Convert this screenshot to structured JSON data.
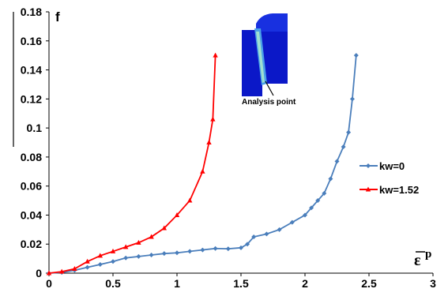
{
  "chart_data": {
    "type": "line",
    "ylabel": "f",
    "xlabel_symbol": "ε",
    "xlabel_sup": "p",
    "xlim": [
      0,
      3
    ],
    "ylim": [
      0,
      0.18
    ],
    "x_ticks": [
      "0",
      "0.5",
      "1",
      "1.5",
      "2",
      "2.5",
      "3"
    ],
    "y_ticks": [
      "0",
      "0.02",
      "0.04",
      "0.06",
      "0.08",
      "0.1",
      "0.12",
      "0.14",
      "0.16",
      "0.18"
    ],
    "legend_position": "right",
    "inset_annotation": "Analysis point",
    "series": [
      {
        "name": "kw=0",
        "color": "#4a7ebb",
        "marker": "diamond",
        "x": [
          0,
          0.1,
          0.2,
          0.3,
          0.4,
          0.5,
          0.6,
          0.7,
          0.8,
          0.9,
          1.0,
          1.1,
          1.2,
          1.3,
          1.4,
          1.5,
          1.55,
          1.6,
          1.7,
          1.8,
          1.9,
          2.0,
          2.05,
          2.1,
          2.15,
          2.2,
          2.25,
          2.3,
          2.34,
          2.37,
          2.4
        ],
        "y": [
          0,
          0.0005,
          0.002,
          0.004,
          0.006,
          0.008,
          0.0105,
          0.0115,
          0.0125,
          0.0135,
          0.014,
          0.015,
          0.016,
          0.017,
          0.0168,
          0.0175,
          0.02,
          0.025,
          0.027,
          0.03,
          0.035,
          0.04,
          0.045,
          0.05,
          0.055,
          0.065,
          0.077,
          0.087,
          0.097,
          0.12,
          0.15
        ]
      },
      {
        "name": "kw=1.52",
        "color": "#ff0000",
        "marker": "triangle",
        "x": [
          0,
          0.1,
          0.2,
          0.3,
          0.4,
          0.5,
          0.6,
          0.7,
          0.8,
          0.9,
          1.0,
          1.1,
          1.2,
          1.25,
          1.28,
          1.3
        ],
        "y": [
          0,
          0.001,
          0.003,
          0.008,
          0.012,
          0.015,
          0.018,
          0.021,
          0.025,
          0.031,
          0.04,
          0.05,
          0.07,
          0.09,
          0.106,
          0.15
        ]
      }
    ]
  }
}
